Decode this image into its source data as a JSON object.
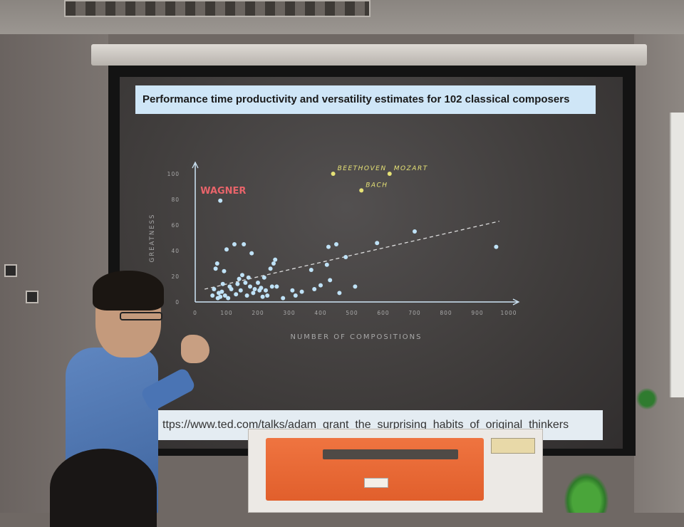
{
  "slide": {
    "title": "Performance time productivity and versatility estimates for 102 classical composers",
    "url": "ttps://www.ted.com/talks/adam_grant_the_surprising_habits_of_original_thinkers"
  },
  "chart_data": {
    "type": "scatter",
    "xlabel": "NUMBER OF COMPOSITIONS",
    "ylabel": "GREATNESS",
    "xlim": [
      0,
      1000
    ],
    "ylim": [
      0,
      100
    ],
    "x_ticks": [
      "0",
      "100",
      "200",
      "300",
      "400",
      "500",
      "600",
      "700",
      "800",
      "900",
      "1000"
    ],
    "y_ticks": [
      "0",
      "20",
      "40",
      "60",
      "80",
      "100"
    ],
    "trendline": {
      "style": "dashed",
      "from": [
        30,
        10
      ],
      "to": [
        970,
        63
      ]
    },
    "highlighted": [
      {
        "label": "WAGNER",
        "x": 80,
        "y": 79,
        "color": "#e8646a",
        "dot_color": "#bfe2f7"
      },
      {
        "label": "BEETHOVEN",
        "x": 440,
        "y": 100,
        "color": "#e6e276",
        "dot_color": "#e6e276"
      },
      {
        "label": "MOZART",
        "x": 620,
        "y": 100,
        "color": "#e6e276",
        "dot_color": "#e6e276"
      },
      {
        "label": "BACH",
        "x": 530,
        "y": 87,
        "color": "#e6e276",
        "dot_color": "#e6e276"
      }
    ],
    "points": [
      [
        55,
        5
      ],
      [
        60,
        10
      ],
      [
        65,
        26
      ],
      [
        70,
        30
      ],
      [
        72,
        3
      ],
      [
        75,
        7
      ],
      [
        80,
        4
      ],
      [
        85,
        8
      ],
      [
        88,
        14
      ],
      [
        92,
        24
      ],
      [
        95,
        5
      ],
      [
        100,
        41
      ],
      [
        105,
        3
      ],
      [
        110,
        12
      ],
      [
        115,
        10
      ],
      [
        125,
        45
      ],
      [
        130,
        6
      ],
      [
        135,
        14
      ],
      [
        140,
        18
      ],
      [
        145,
        9
      ],
      [
        150,
        21
      ],
      [
        155,
        45
      ],
      [
        160,
        15
      ],
      [
        165,
        5
      ],
      [
        170,
        19
      ],
      [
        175,
        12
      ],
      [
        180,
        38
      ],
      [
        185,
        7
      ],
      [
        190,
        10
      ],
      [
        200,
        15
      ],
      [
        205,
        9
      ],
      [
        210,
        11
      ],
      [
        215,
        4
      ],
      [
        220,
        19
      ],
      [
        225,
        9
      ],
      [
        230,
        5
      ],
      [
        240,
        26
      ],
      [
        245,
        12
      ],
      [
        250,
        30
      ],
      [
        255,
        33
      ],
      [
        260,
        12
      ],
      [
        280,
        3
      ],
      [
        310,
        9
      ],
      [
        320,
        5
      ],
      [
        340,
        8
      ],
      [
        370,
        25
      ],
      [
        380,
        10
      ],
      [
        400,
        13
      ],
      [
        420,
        29
      ],
      [
        425,
        43
      ],
      [
        430,
        17
      ],
      [
        450,
        45
      ],
      [
        460,
        7
      ],
      [
        480,
        35
      ],
      [
        510,
        12
      ],
      [
        580,
        46
      ],
      [
        700,
        55
      ],
      [
        960,
        43
      ]
    ]
  },
  "colors": {
    "point": "#bfe2f7",
    "axis": "#cfe6f7",
    "label": "#a8a8a8",
    "title_bar": "#cfe6f7"
  }
}
